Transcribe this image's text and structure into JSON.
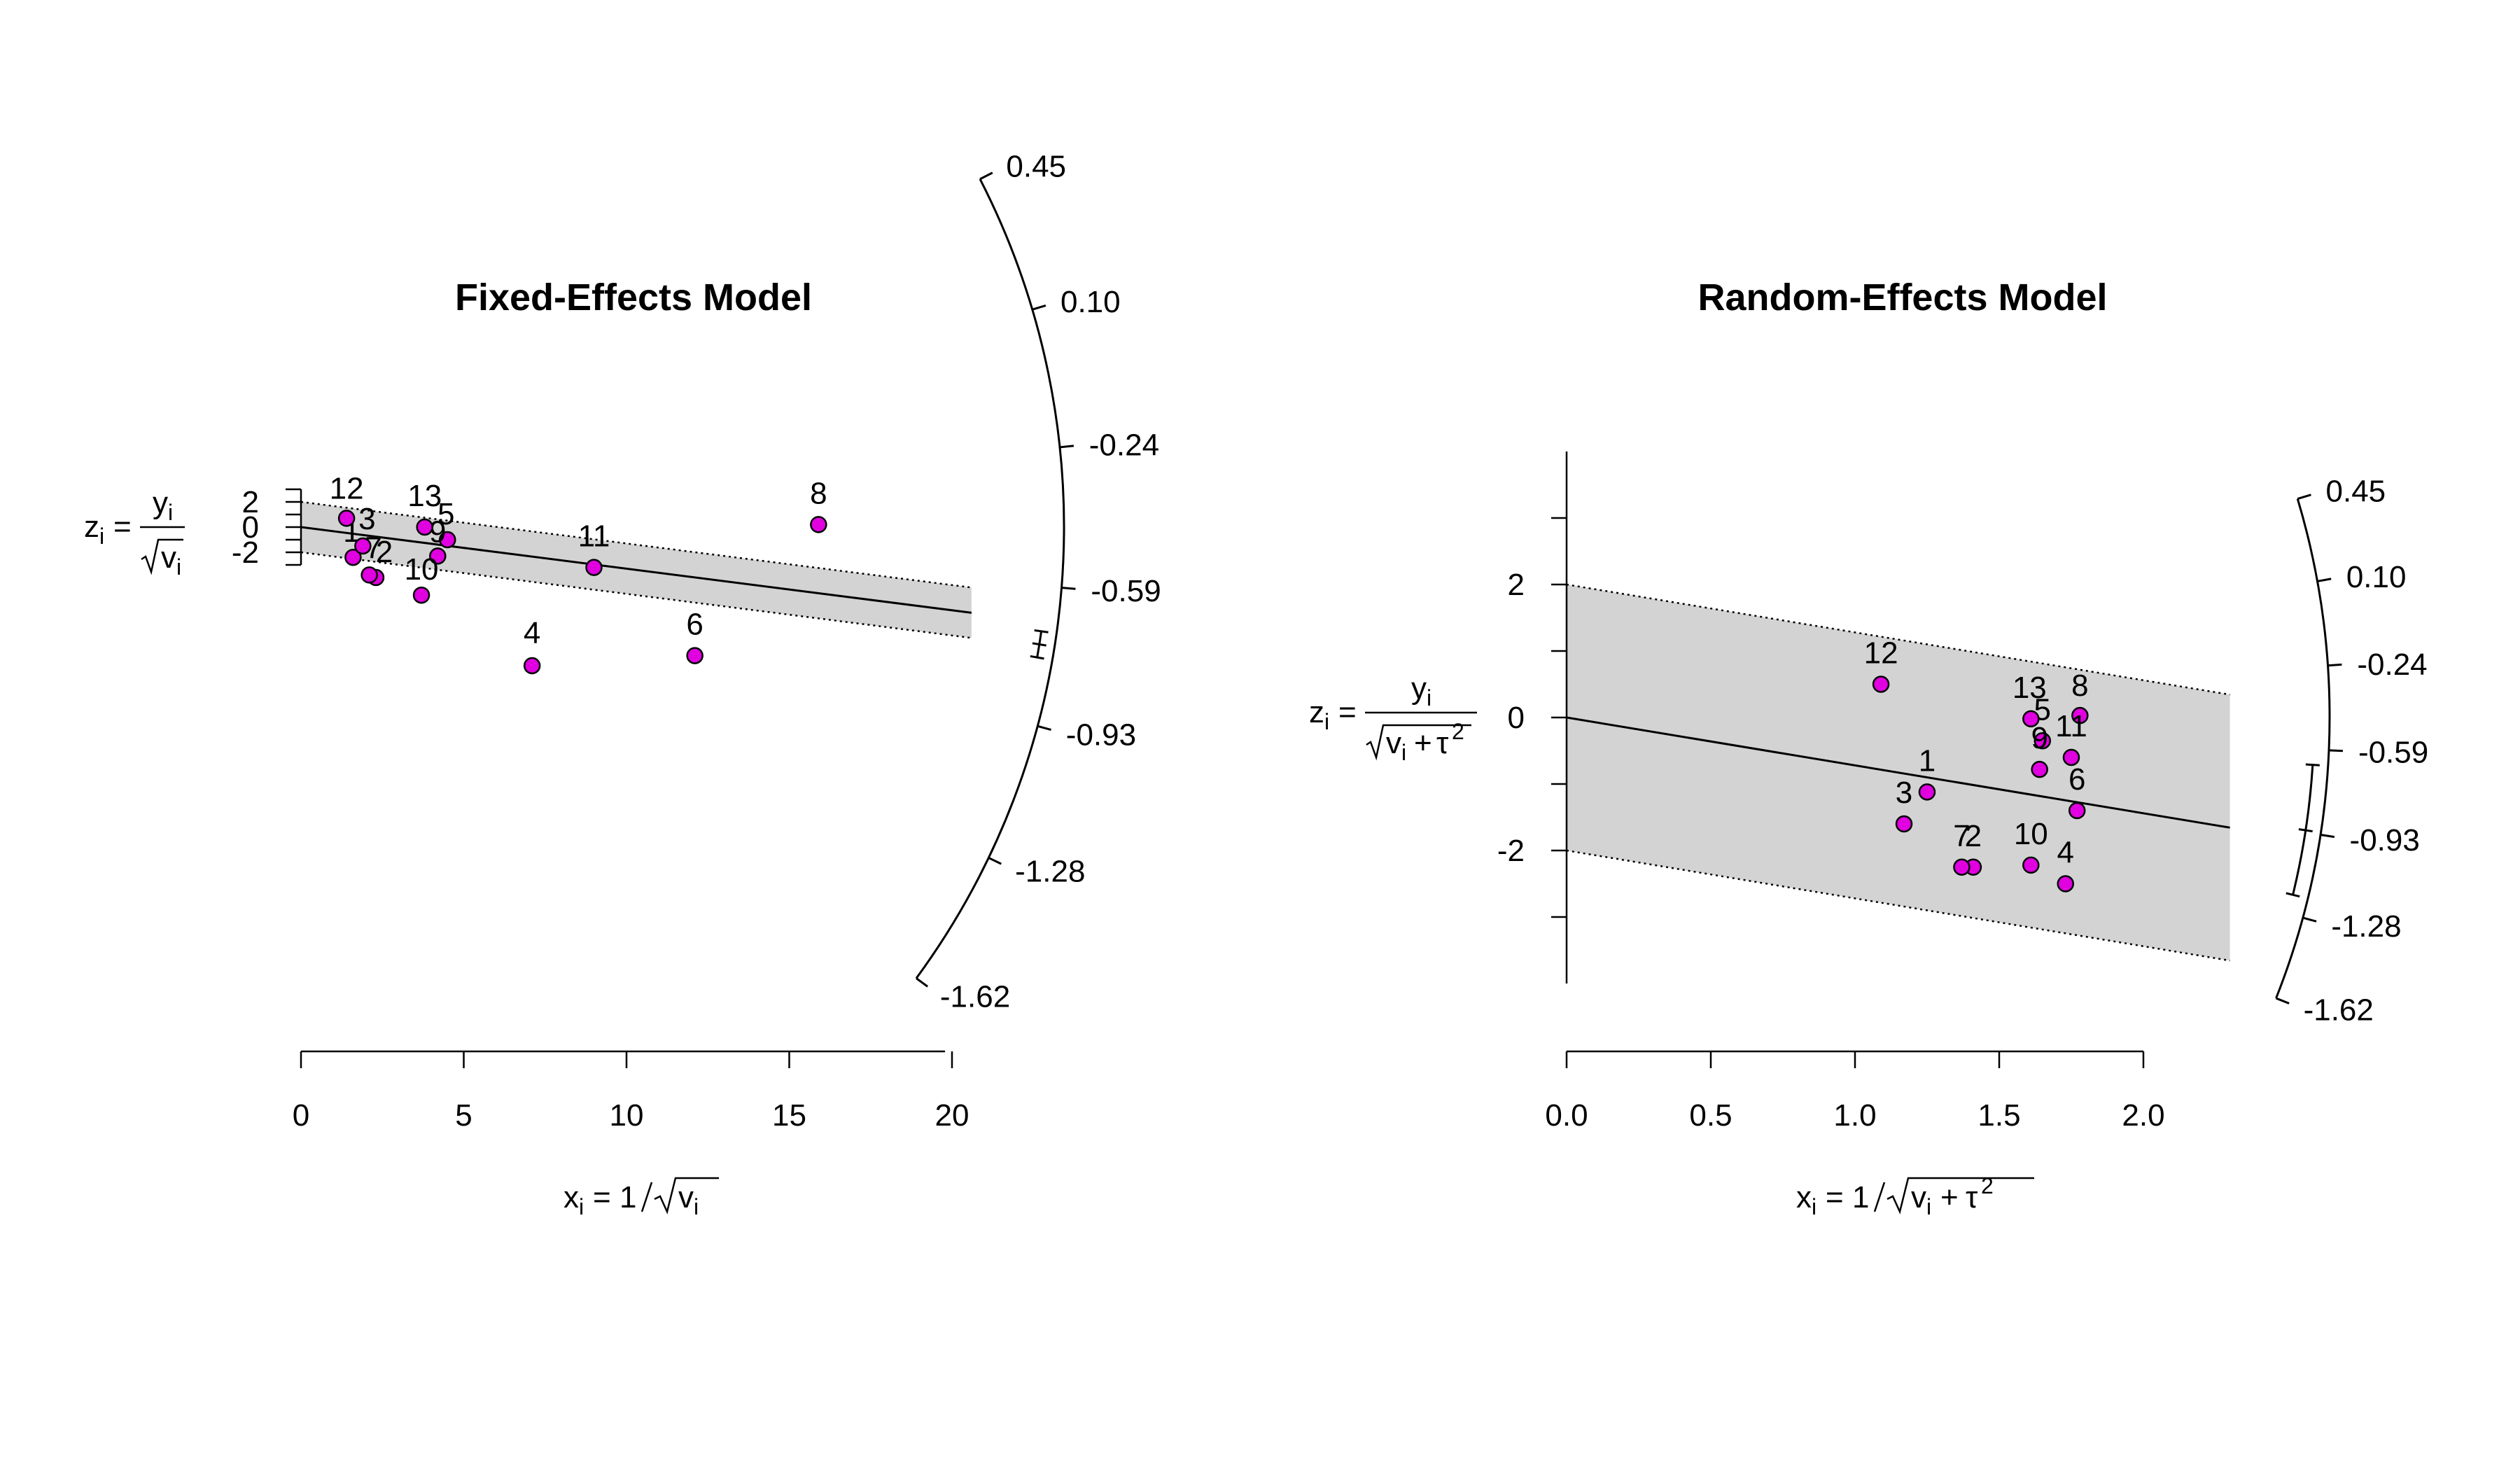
{
  "colors": {
    "point_fill": "#e000e0",
    "point_stroke": "#000000",
    "band_fill": "#d3d3d3",
    "line": "#000000"
  },
  "chart_data": [
    {
      "type": "scatter",
      "subtype": "radial (Galbraith) plot",
      "title": "Fixed-Effects Model",
      "xlabel": "x_i = 1/√v_i",
      "ylabel": "z_i = y_i/√v_i",
      "x_ticks": [
        "0",
        "5",
        "10",
        "15",
        "20"
      ],
      "xlim": [
        0,
        20.6
      ],
      "y_ticks": [
        "2",
        "0",
        "-2"
      ],
      "band": {
        "lower": -2,
        "upper": 2
      },
      "regression_slope": -0.33,
      "arc_ticks": [
        "0.45",
        "0.10",
        "-0.24",
        "-0.59",
        "-0.93",
        "-1.28",
        "-1.62"
      ],
      "arc_range": [
        -1.62,
        0.45
      ],
      "ci_bracket": {
        "low": -0.5,
        "high": -0.3
      },
      "points": [
        {
          "label": "1",
          "x": 1.6,
          "y": -2.4
        },
        {
          "label": "2",
          "x": 2.3,
          "y": -4.0
        },
        {
          "label": "3",
          "x": 1.9,
          "y": -1.5
        },
        {
          "label": "4",
          "x": 7.1,
          "y": -11.0
        },
        {
          "label": "5",
          "x": 4.5,
          "y": -1.0
        },
        {
          "label": "6",
          "x": 12.1,
          "y": -10.2
        },
        {
          "label": "7",
          "x": 2.1,
          "y": -3.8
        },
        {
          "label": "8",
          "x": 15.9,
          "y": 0.2
        },
        {
          "label": "9",
          "x": 4.2,
          "y": -2.3
        },
        {
          "label": "10",
          "x": 3.7,
          "y": -5.4
        },
        {
          "label": "11",
          "x": 9.0,
          "y": -3.2
        },
        {
          "label": "12",
          "x": 1.4,
          "y": 0.7
        },
        {
          "label": "13",
          "x": 3.8,
          "y": 0.0
        }
      ]
    },
    {
      "type": "scatter",
      "subtype": "radial (Galbraith) plot",
      "title": "Random-Effects Model",
      "xlabel": "x_i = 1/√(v_i + τ²)",
      "ylabel": "z_i = y_i/√(v_i + τ²)",
      "x_ticks": [
        "0.0",
        "0.5",
        "1.0",
        "1.5",
        "2.0"
      ],
      "xlim": [
        0,
        2.3
      ],
      "y_ticks": [
        "2",
        "0",
        "-2"
      ],
      "band": {
        "lower": -2,
        "upper": 2
      },
      "regression_slope": -0.72,
      "arc_ticks": [
        "0.45",
        "0.10",
        "-0.24",
        "-0.59",
        "-0.93",
        "-1.28",
        "-1.62"
      ],
      "arc_range": [
        -1.62,
        0.45
      ],
      "ci_bracket": {
        "low": -1.2,
        "high": -0.2
      },
      "points": [
        {
          "label": "1",
          "x": 1.25,
          "y": -1.12
        },
        {
          "label": "2",
          "x": 1.41,
          "y": -2.25
        },
        {
          "label": "3",
          "x": 1.17,
          "y": -1.6
        },
        {
          "label": "4",
          "x": 1.73,
          "y": -2.5
        },
        {
          "label": "5",
          "x": 1.65,
          "y": -0.35
        },
        {
          "label": "6",
          "x": 1.77,
          "y": -1.4
        },
        {
          "label": "7",
          "x": 1.37,
          "y": -2.25
        },
        {
          "label": "8",
          "x": 1.78,
          "y": 0.03
        },
        {
          "label": "9",
          "x": 1.64,
          "y": -0.78
        },
        {
          "label": "10",
          "x": 1.61,
          "y": -2.22
        },
        {
          "label": "11",
          "x": 1.75,
          "y": -0.6
        },
        {
          "label": "12",
          "x": 1.09,
          "y": 0.5
        },
        {
          "label": "13",
          "x": 1.61,
          "y": -0.02
        }
      ]
    }
  ]
}
